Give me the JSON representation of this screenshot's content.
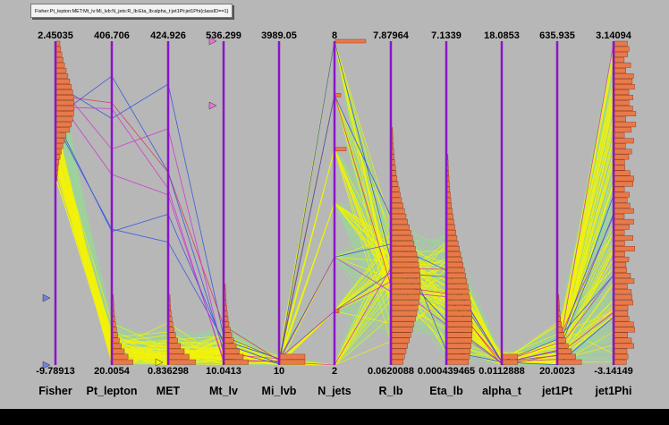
{
  "window": {
    "title_box": "Fisher:Pt_lepton:MET:Mt_lv:Mi_lvb:N_jets:R_lb:Eta_lb:alpha_t:jet1Pt:jet1Phi{classID==1}"
  },
  "colors": {
    "canvas_bg": "#b7b7b7",
    "axis": "#8a14c8",
    "background_events": "#9ed29c",
    "signal_events": "#f2f20a",
    "histogram_fill": "#e87a4a",
    "histogram_stroke": "#8b2a10",
    "marker_blue": "#6f7ef0",
    "marker_pink": "#f070e0"
  },
  "chart_data": {
    "type": "parallel-coordinates",
    "axes": [
      {
        "name": "Fisher",
        "max": "2.45035",
        "min": "-9.78913"
      },
      {
        "name": "Pt_lepton",
        "max": "406.706",
        "min": "20.0054"
      },
      {
        "name": "MET",
        "max": "424.926",
        "min": "0.836298"
      },
      {
        "name": "Mt_lv",
        "max": "536.299",
        "min": "10.0413"
      },
      {
        "name": "Mi_lvb",
        "max": "3989.05",
        "min": "10"
      },
      {
        "name": "N_jets",
        "max": "8",
        "min": "2"
      },
      {
        "name": "R_lb",
        "max": "7.87964",
        "min": "0.0620088"
      },
      {
        "name": "Eta_lb",
        "max": "7.1339",
        "min": "0.000439465"
      },
      {
        "name": "alpha_t",
        "max": "18.0853",
        "min": "0.0112888"
      },
      {
        "name": "jet1Pt",
        "max": "635.935",
        "min": "20.0023"
      },
      {
        "name": "jet1Phi",
        "max": "3.14094",
        "min": "-3.14149"
      }
    ],
    "series": [
      {
        "values": [
          0.5,
          0.12,
          0.1,
          0.12,
          0.03,
          0.4,
          0.3,
          0.3,
          0.05,
          0.1,
          0.5
        ]
      },
      {
        "values": [
          0.7,
          0.05,
          0.05,
          0.05,
          0.02,
          0.3,
          0.4,
          0.25,
          0.03,
          0.05,
          0.5
        ]
      }
    ]
  }
}
